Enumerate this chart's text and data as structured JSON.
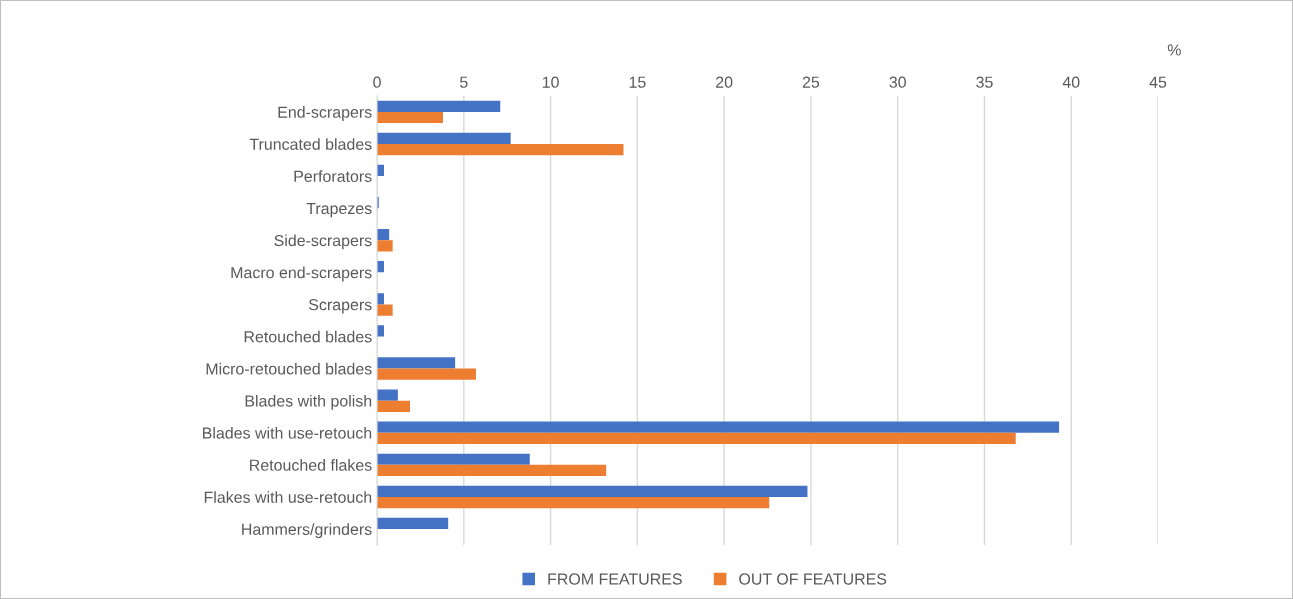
{
  "chart_data": {
    "type": "bar",
    "orientation": "horizontal",
    "xlabel": "%",
    "categories": [
      "End-scrapers",
      "Truncated blades",
      "Perforators",
      "Trapezes",
      "Side-scrapers",
      "Macro end-scrapers",
      "Scrapers",
      "Retouched blades",
      "Micro-retouched blades",
      "Blades with polish",
      "Blades with use-retouch",
      "Retouched flakes",
      "Flakes with use-retouch",
      "Hammers/grinders"
    ],
    "series": [
      {
        "name": "FROM FEATURES",
        "color": "#4472c4",
        "values": [
          7.1,
          7.7,
          0.4,
          0.1,
          0.7,
          0.4,
          0.4,
          0.4,
          4.5,
          1.2,
          39.3,
          8.8,
          24.8,
          4.1
        ]
      },
      {
        "name": "OUT OF FEATURES",
        "color": "#ed7d31",
        "values": [
          3.8,
          14.2,
          null,
          null,
          0.9,
          null,
          0.9,
          null,
          5.7,
          1.9,
          36.8,
          13.2,
          22.6,
          null
        ]
      }
    ],
    "xlim": [
      0,
      45
    ],
    "xticks": [
      0,
      5,
      10,
      15,
      20,
      25,
      30,
      35,
      40,
      45
    ],
    "grid": "x",
    "legend": "bottom"
  }
}
